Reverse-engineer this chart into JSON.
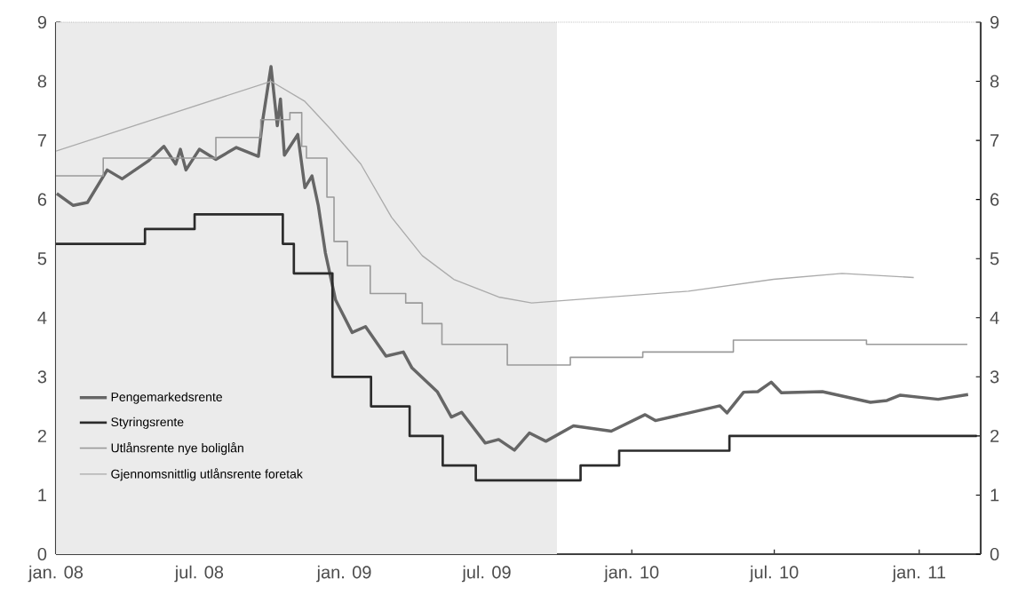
{
  "chart_data": {
    "type": "line",
    "xlim": [
      "2008-01-01",
      "2011-03-20"
    ],
    "xticks": [
      {
        "value": "2008-01-01",
        "label": "jan. 08"
      },
      {
        "value": "2008-07-01",
        "label": "jul. 08"
      },
      {
        "value": "2009-01-01",
        "label": "jan. 09"
      },
      {
        "value": "2009-07-01",
        "label": "jul. 09"
      },
      {
        "value": "2010-01-01",
        "label": "jan. 10"
      },
      {
        "value": "2010-07-01",
        "label": "jul. 10"
      },
      {
        "value": "2011-01-01",
        "label": "jan. 11"
      }
    ],
    "ylim": [
      0,
      9
    ],
    "yticks": [
      0,
      1,
      2,
      3,
      4,
      5,
      6,
      7,
      8,
      9
    ],
    "y2lim": [
      0,
      9
    ],
    "y2ticks": [
      0,
      1,
      2,
      3,
      4,
      5,
      6,
      7,
      8,
      9
    ],
    "legend": "bottom left",
    "bands": [
      {
        "axis": "x",
        "from": "2008-01-01",
        "to": "2009-09-28",
        "color": "#ebebeb"
      }
    ],
    "series": [
      {
        "name": "Pengemarkedsrente",
        "color": "#666666",
        "x": [
          "2008-01-02",
          "2008-01-23",
          "2008-02-10",
          "2008-03-06",
          "2008-03-25",
          "2008-04-27",
          "2008-05-17",
          "2008-06-01",
          "2008-06-07",
          "2008-06-14",
          "2008-07-01",
          "2008-07-22",
          "2008-08-17",
          "2008-09-14",
          "2008-09-19",
          "2008-09-30",
          "2008-10-08",
          "2008-10-12",
          "2008-10-17",
          "2008-11-03",
          "2008-11-12",
          "2008-11-21",
          "2008-11-29",
          "2008-12-08",
          "2008-12-21",
          "2009-01-11",
          "2009-01-28",
          "2009-02-23",
          "2009-03-17",
          "2009-03-28",
          "2009-04-29",
          "2009-05-17",
          "2009-05-30",
          "2009-06-29",
          "2009-07-16",
          "2009-08-05",
          "2009-08-24",
          "2009-09-14",
          "2009-10-19",
          "2009-12-06",
          "2010-01-18",
          "2010-01-31",
          "2010-03-15",
          "2010-04-23",
          "2010-05-02",
          "2010-05-23",
          "2010-06-10",
          "2010-06-27",
          "2010-07-10",
          "2010-08-31",
          "2010-10-31",
          "2010-11-21",
          "2010-12-08",
          "2011-01-25",
          "2011-03-04"
        ],
        "values": [
          6.1,
          5.9,
          5.95,
          6.5,
          6.35,
          6.65,
          6.9,
          6.6,
          6.85,
          6.5,
          6.85,
          6.68,
          6.88,
          6.73,
          7.3,
          8.25,
          7.25,
          7.7,
          6.75,
          7.1,
          6.2,
          6.4,
          5.9,
          5.1,
          4.3,
          3.75,
          3.85,
          3.35,
          3.42,
          3.15,
          2.75,
          2.32,
          2.4,
          1.88,
          1.94,
          1.76,
          2.05,
          1.91,
          2.17,
          2.08,
          2.36,
          2.26,
          2.39,
          2.51,
          2.39,
          2.74,
          2.75,
          2.91,
          2.73,
          2.75,
          2.57,
          2.6,
          2.69,
          2.62,
          2.7
        ]
      },
      {
        "name": "Styringsrente",
        "type": "step",
        "color": "#2b2b2b",
        "x": [
          "2008-01-01",
          "2008-04-23",
          "2008-06-25",
          "2008-10-15",
          "2008-10-29",
          "2008-12-17",
          "2009-02-04",
          "2009-03-25",
          "2009-05-06",
          "2009-06-17",
          "2009-10-28",
          "2009-12-16",
          "2010-05-05",
          "2011-03-15"
        ],
        "values": [
          5.25,
          5.5,
          5.75,
          5.25,
          4.75,
          3.0,
          2.5,
          2.0,
          1.5,
          1.25,
          1.5,
          1.75,
          2.0,
          2.0
        ]
      },
      {
        "name": "Utlånsrente nye boliglån",
        "type": "step",
        "color": "#9a9a9a",
        "x": [
          "2008-01-01",
          "2008-03-01",
          "2008-07-22",
          "2008-09-17",
          "2008-10-24",
          "2008-11-08",
          "2008-11-14",
          "2008-12-10",
          "2008-12-19",
          "2009-01-05",
          "2009-02-03",
          "2009-03-20",
          "2009-04-10",
          "2009-05-05",
          "2009-07-27",
          "2009-10-15",
          "2010-01-15",
          "2010-05-10",
          "2010-10-26",
          "2011-03-03"
        ],
        "values": [
          6.4,
          6.7,
          7.05,
          7.35,
          7.47,
          6.9,
          6.7,
          6.04,
          5.29,
          4.88,
          4.41,
          4.25,
          3.9,
          3.55,
          3.2,
          3.33,
          3.42,
          3.62,
          3.55,
          3.55
        ]
      },
      {
        "name": "Gjennomsnittlig utlånsrente foretak",
        "color": "#ababab",
        "x": [
          "2008-01-01",
          "2008-09-30",
          "2008-11-12",
          "2008-12-14",
          "2009-01-22",
          "2009-03-02",
          "2009-04-10",
          "2009-05-20",
          "2009-07-16",
          "2009-08-27",
          "2010-03-14",
          "2010-06-30",
          "2010-09-25",
          "2010-12-25"
        ],
        "values": [
          6.82,
          8.0,
          7.66,
          7.2,
          6.6,
          5.7,
          5.05,
          4.65,
          4.35,
          4.25,
          4.45,
          4.65,
          4.75,
          4.68
        ]
      }
    ]
  }
}
